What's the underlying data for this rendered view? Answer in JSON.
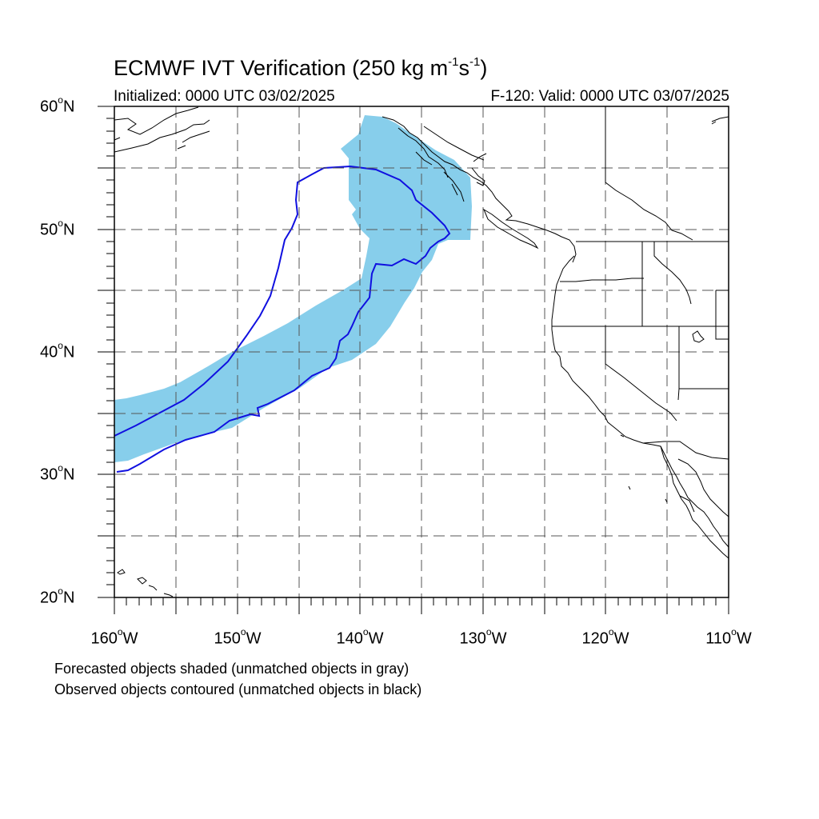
{
  "title": {
    "main": "ECMWF IVT Verification (250 kg m",
    "exp1": "-1",
    "mid": "s",
    "exp2": "-1",
    "end": ")"
  },
  "subtitle_left": "Initialized: 0000 UTC 03/02/2025",
  "subtitle_right": "F-120: Valid: 0000 UTC 03/07/2025",
  "degree_symbol": "o",
  "lat_labels": [
    {
      "num": "60",
      "hemi": "N"
    },
    {
      "num": "50",
      "hemi": "N"
    },
    {
      "num": "40",
      "hemi": "N"
    },
    {
      "num": "30",
      "hemi": "N"
    },
    {
      "num": "20",
      "hemi": "N"
    }
  ],
  "lon_labels": [
    {
      "num": "160",
      "hemi": "W"
    },
    {
      "num": "150",
      "hemi": "W"
    },
    {
      "num": "140",
      "hemi": "W"
    },
    {
      "num": "130",
      "hemi": "W"
    },
    {
      "num": "120",
      "hemi": "W"
    },
    {
      "num": "110",
      "hemi": "W"
    }
  ],
  "notes": {
    "line1": "Forecasted objects shaded (unmatched objects in gray)",
    "line2": "Observed objects contoured (unmatched objects in black)"
  },
  "colors": {
    "forecast_fill": "#87ceeb",
    "observed_contour": "#1010e0",
    "grid": "#555555",
    "coast": "#000000"
  },
  "map_extent": {
    "lon_min": -160,
    "lon_max": -110,
    "lat_min": 20,
    "lat_max": 60
  }
}
